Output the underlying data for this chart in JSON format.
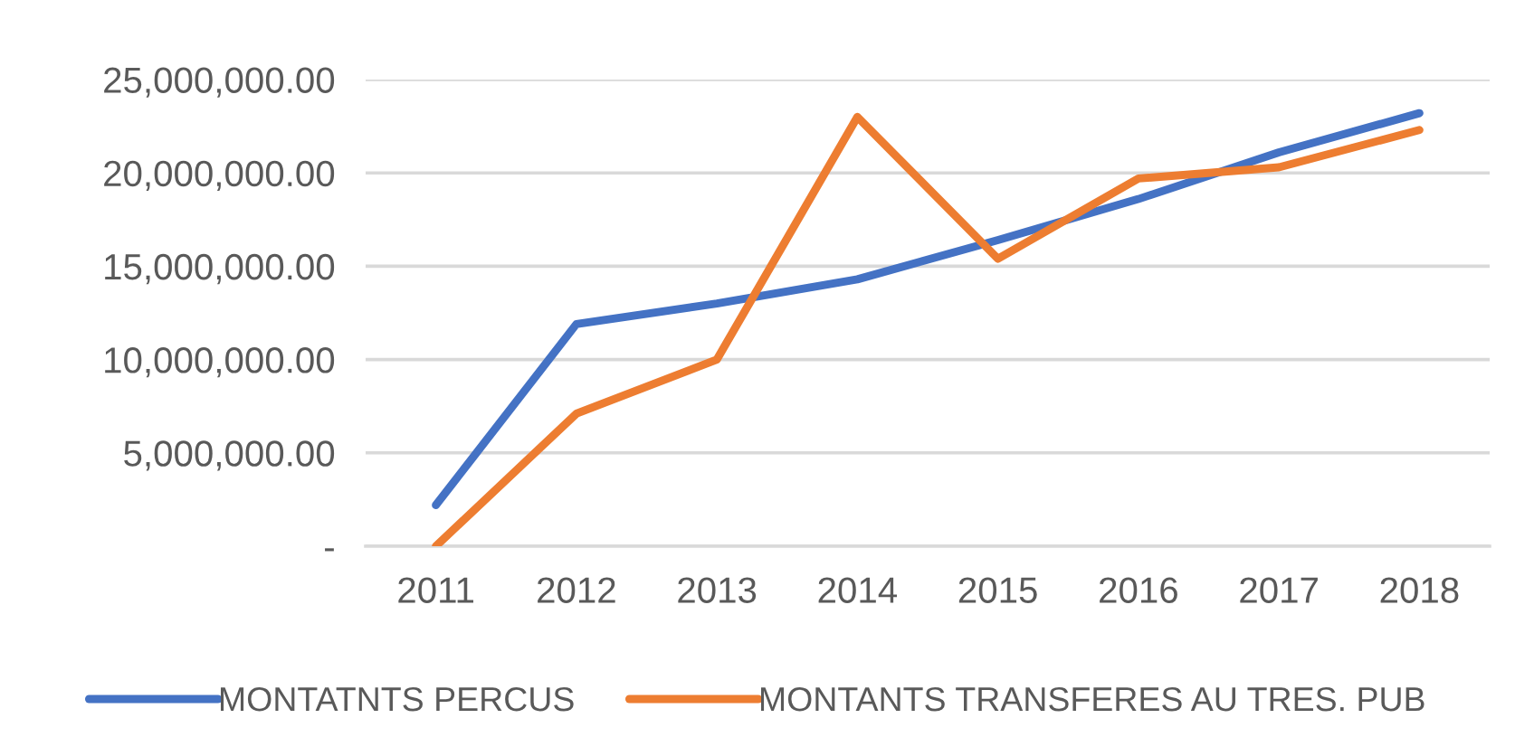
{
  "chart_data": {
    "type": "line",
    "categories": [
      "2011",
      "2012",
      "2013",
      "2014",
      "2015",
      "2016",
      "2017",
      "2018"
    ],
    "series": [
      {
        "name": "MONTATNTS PERCUS",
        "color": "#4472c4",
        "values": [
          2200000,
          11900000,
          13000000,
          14300000,
          16400000,
          18600000,
          21100000,
          23200000
        ]
      },
      {
        "name": "MONTANTS TRANSFERES AU TRES. PUB",
        "color": "#ed7d31",
        "values": [
          0,
          7100000,
          10000000,
          23000000,
          15400000,
          19700000,
          20300000,
          22300000
        ]
      }
    ],
    "ylim": [
      0,
      25000000
    ],
    "yticks": [
      {
        "value": 0,
        "label": "-"
      },
      {
        "value": 5000000,
        "label": "5,000,000.00"
      },
      {
        "value": 10000000,
        "label": "10,000,000.00"
      },
      {
        "value": 15000000,
        "label": "15,000,000.00"
      },
      {
        "value": 20000000,
        "label": "20,000,000.00"
      },
      {
        "value": 25000000,
        "label": "25,000,000.00"
      }
    ],
    "grid": "y",
    "legend": "bottom",
    "marker": "none",
    "line_style": "solid"
  }
}
